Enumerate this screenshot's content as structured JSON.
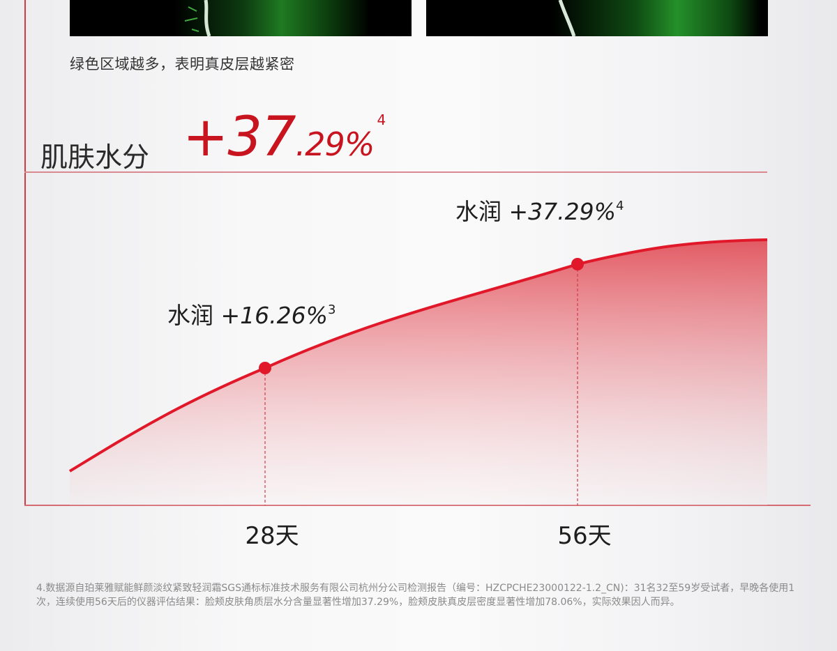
{
  "caption": "绿色区域越多，表明真皮层越紧密",
  "headline": {
    "label": "肌肤水分",
    "value_main": "+37",
    "value_decimal": ".29%",
    "footnote_ref": "4"
  },
  "colors": {
    "accent": "#c8141f",
    "curve": "#e0182a",
    "fill_top": "#e0404a",
    "frame": "#cf3a44"
  },
  "chart_data": {
    "type": "area",
    "title": "",
    "xlabel": "",
    "ylabel": "",
    "x_tick_labels": [
      "28天",
      "56天"
    ],
    "points": [
      {
        "x": "28天",
        "y": 16.26,
        "label_prefix": "水润",
        "label_value": "+16.26%",
        "footnote": "3"
      },
      {
        "x": "56天",
        "y": 37.29,
        "label_prefix": "水润",
        "label_value": "+37.29%",
        "footnote": "4"
      }
    ],
    "grid": false,
    "legend": "none"
  },
  "footnote_text": "4.数据源自珀莱雅赋能鲜颜淡纹紧致轻润霜SGS通标标准技术服务有限公司杭州分公司检测报告（编号：HZCPCHE23000122-1.2_CN)：31名32至59岁受试者，早晚各使用1次，连续使用56天后的仪器评估结果：脸颊皮肤角质层水分含量显著性增加37.29%，脸颊皮肤真皮层密度显著性增加78.06%，实际效果因人而异。"
}
